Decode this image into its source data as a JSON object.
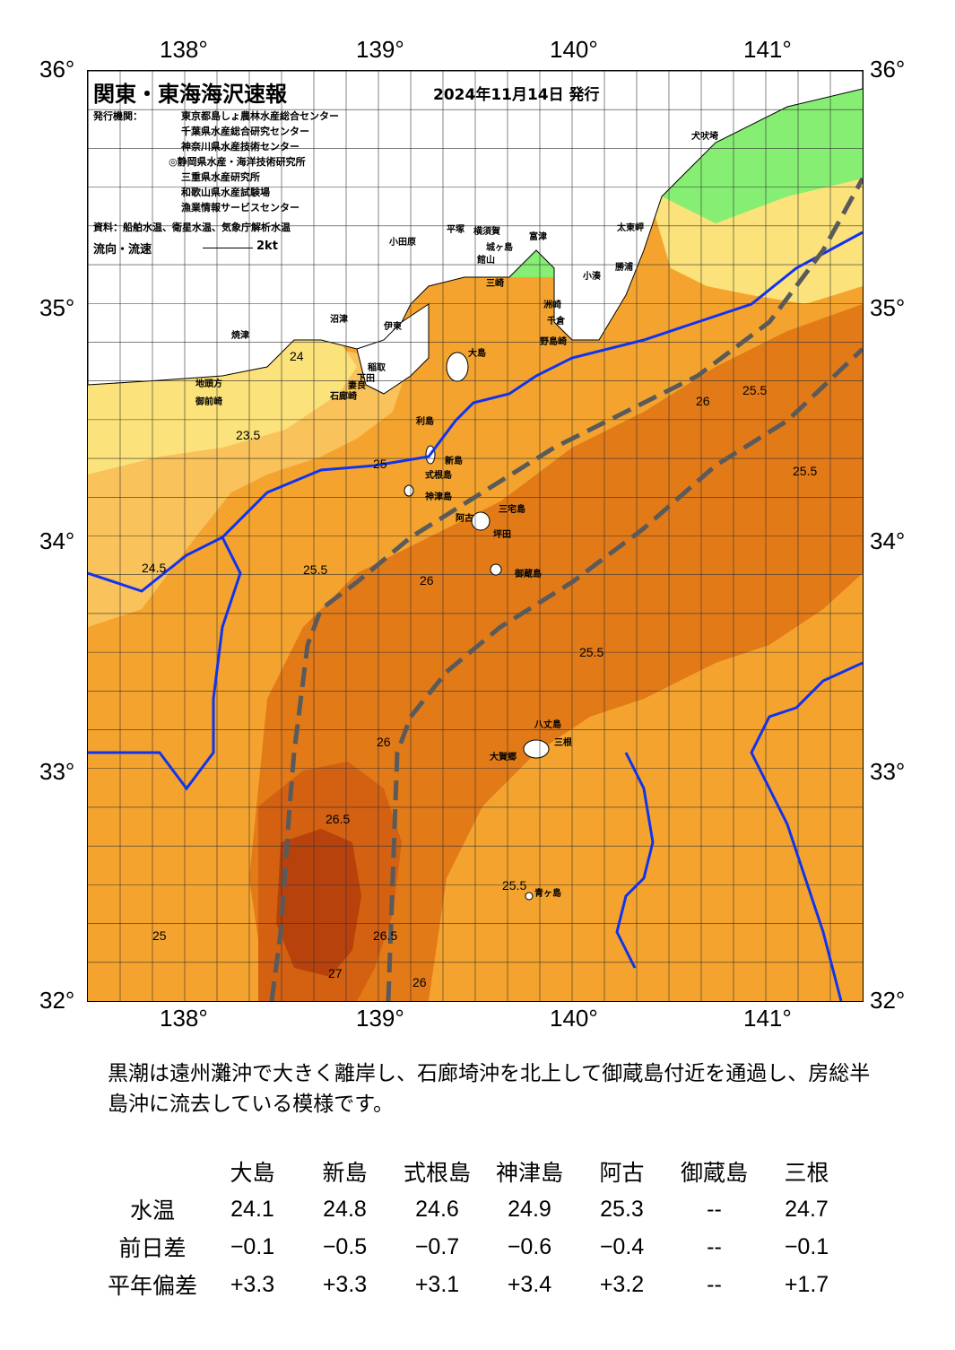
{
  "axes": {
    "lon_top": [
      "138°",
      "139°",
      "140°",
      "141°"
    ],
    "lon_bottom": [
      "138°",
      "139°",
      "140°",
      "141°"
    ],
    "lat_left": [
      "36°",
      "35°",
      "34°",
      "33°",
      "32°"
    ],
    "lat_right": [
      "36°",
      "35°",
      "34°",
      "33°",
      "32°"
    ]
  },
  "header": {
    "title": "関東・東海海沢速報",
    "date": "2024年11月14日 発行",
    "issuer_label": "発行機関：",
    "issuers": [
      "東京都島しょ農林水産総合センター",
      "千葉県水産総合研究センター",
      "神奈川県水産技術センター",
      "◎静岡県水産・海洋技術研究所",
      "三重県水産研究所",
      "和歌山県水産試験場",
      "漁業情報サービスセンター"
    ],
    "sources": "資料：船舶水温、衛星水温、気象庁解析水温",
    "flow_label": "流向・流速",
    "flow_scale": "2kt"
  },
  "places": [
    {
      "name": "犬吠埼"
    },
    {
      "name": "太東岬"
    },
    {
      "name": "小湊"
    },
    {
      "name": "勝浦"
    },
    {
      "name": "小田原"
    },
    {
      "name": "平塚"
    },
    {
      "name": "横須賀"
    },
    {
      "name": "富津"
    },
    {
      "name": "城ヶ島"
    },
    {
      "name": "館山"
    },
    {
      "name": "三崎"
    },
    {
      "name": "洲崎"
    },
    {
      "name": "千倉"
    },
    {
      "name": "野島崎"
    },
    {
      "name": "沼津"
    },
    {
      "name": "伊東"
    },
    {
      "name": "焼津"
    },
    {
      "name": "稲取"
    },
    {
      "name": "下田"
    },
    {
      "name": "大島"
    },
    {
      "name": "地頭方"
    },
    {
      "name": "御前崎"
    },
    {
      "name": "石廊崎"
    },
    {
      "name": "妻良"
    },
    {
      "name": "利島"
    },
    {
      "name": "新島"
    },
    {
      "name": "式根島"
    },
    {
      "name": "神津島"
    },
    {
      "name": "三宅島"
    },
    {
      "name": "阿古"
    },
    {
      "name": "坪田"
    },
    {
      "name": "御蔵島"
    },
    {
      "name": "八丈島"
    },
    {
      "name": "三根"
    },
    {
      "name": "大賀郷"
    },
    {
      "name": "青ヶ島"
    }
  ],
  "contour_labels": [
    "23.5",
    "24",
    "24.5",
    "25",
    "25.5",
    "26",
    "26.5",
    "27"
  ],
  "summary": "黒潮は遠州灘沖で大きく離岸し、石廊埼沖を北上して御蔵島付近を通過し、房総半島沖に流去している模様です。",
  "table": {
    "stations": [
      "大島",
      "新島",
      "式根島",
      "神津島",
      "阿古",
      "御蔵島",
      "三根"
    ],
    "rows": [
      {
        "label": "水温",
        "values": [
          "24.1",
          "24.8",
          "24.6",
          "24.9",
          "25.3",
          "--",
          "24.7"
        ]
      },
      {
        "label": "前日差",
        "values": [
          "−0.1",
          "−0.5",
          "−0.7",
          "−0.6",
          "−0.4",
          "--",
          "−0.1"
        ]
      },
      {
        "label": "平年偏差",
        "values": [
          "+3.3",
          "+3.3",
          "+3.1",
          "+3.4",
          "+3.2",
          "--",
          "+1.7"
        ]
      }
    ]
  },
  "colors": {
    "cold_green": "#86ee72",
    "light_yellow": "#fbe27a",
    "yellow_orange": "#f9c25a",
    "orange": "#f4a42e",
    "dark_orange": "#e27a18",
    "deep_orange": "#d46012",
    "red_brown": "#b8420c",
    "isotherm_blue": "#1133ee",
    "kuroshio_axis": "#5a5a5a"
  }
}
